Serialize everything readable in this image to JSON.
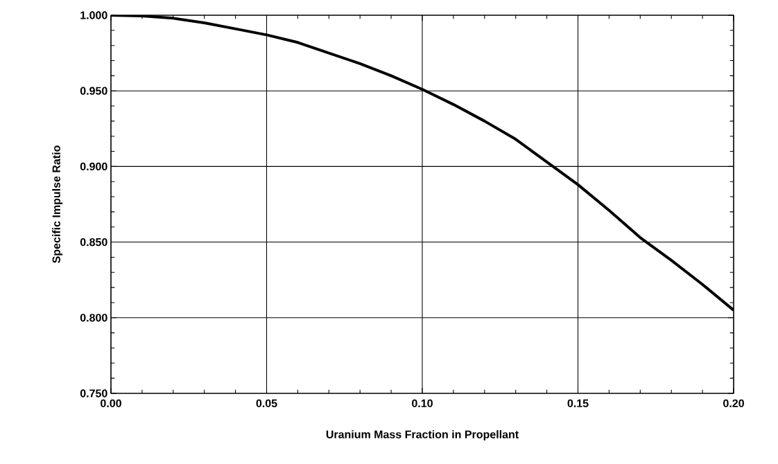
{
  "chart_data": {
    "type": "line",
    "xlabel": "Uranium Mass Fraction in Propellant",
    "ylabel": "Specific Impulse Ratio",
    "x": [
      0,
      0.01,
      0.02,
      0.03,
      0.04,
      0.05,
      0.06,
      0.07,
      0.08,
      0.09,
      0.1,
      0.11,
      0.12,
      0.13,
      0.14,
      0.15,
      0.16,
      0.17,
      0.18,
      0.19,
      0.2
    ],
    "series": [
      {
        "color": "#000000",
        "values": [
          1.0,
          0.9995,
          0.998,
          0.995,
          0.991,
          0.987,
          0.982,
          0.975,
          0.968,
          0.96,
          0.951,
          0.941,
          0.93,
          0.918,
          0.903,
          0.888,
          0.871,
          0.853,
          0.838,
          0.822,
          0.805
        ]
      }
    ],
    "xlim": [
      0,
      0.2
    ],
    "ylim": [
      0.75,
      1.0
    ],
    "xticks": [
      {
        "value": 0,
        "label": "0.00"
      },
      {
        "value": 0.05,
        "label": "0.05"
      },
      {
        "value": 0.1,
        "label": "0.10"
      },
      {
        "value": 0.15,
        "label": "0.15"
      },
      {
        "value": 0.2,
        "label": "0.20"
      }
    ],
    "yticks": [
      {
        "value": 0.75,
        "label": "0.750"
      },
      {
        "value": 0.8,
        "label": "0.800"
      },
      {
        "value": 0.85,
        "label": "0.850"
      },
      {
        "value": 0.9,
        "label": "0.900"
      },
      {
        "value": 0.95,
        "label": "0.950"
      },
      {
        "value": 1.0,
        "label": "1.000"
      }
    ],
    "grid": true,
    "marker": "none",
    "line_style": "solid",
    "legend": false
  }
}
